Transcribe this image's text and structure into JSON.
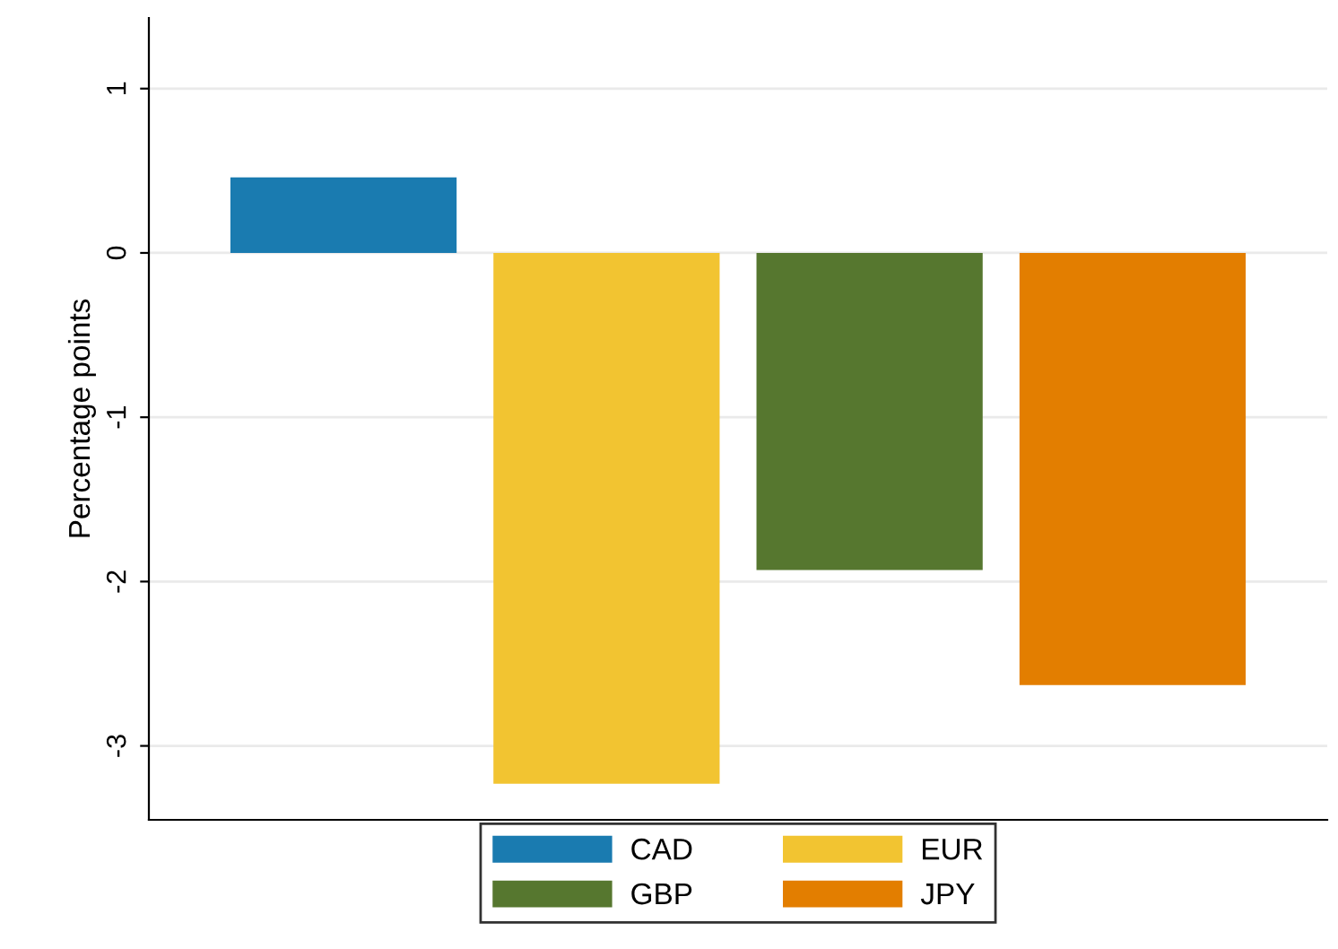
{
  "chart_data": {
    "type": "bar",
    "ylabel": "Percentage points",
    "categories": [
      null,
      null,
      null,
      null
    ],
    "series": [
      {
        "name": "CAD",
        "color": "#1a7bb0",
        "values": [
          0.46,
          null,
          null,
          null
        ]
      },
      {
        "name": "EUR",
        "color": "#f2c431",
        "values": [
          null,
          -3.23,
          null,
          null
        ]
      },
      {
        "name": "GBP",
        "color": "#56772f",
        "values": [
          null,
          null,
          -1.93,
          null
        ]
      },
      {
        "name": "JPY",
        "color": "#e37e00",
        "values": [
          null,
          null,
          null,
          -2.63
        ]
      }
    ],
    "ylim": [
      -3.45,
      1.43
    ],
    "yticks": [
      -3,
      -2,
      -1,
      0,
      1
    ],
    "grid": "y",
    "legend": "bottom"
  }
}
